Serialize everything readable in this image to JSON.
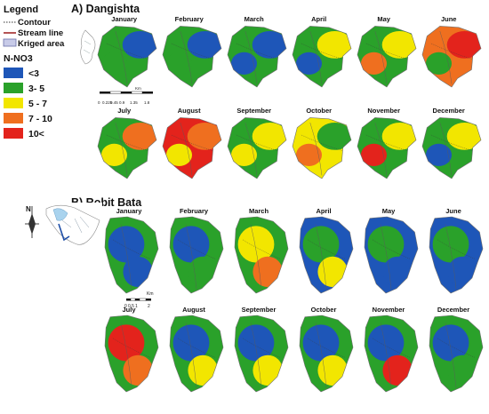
{
  "legend": {
    "title": "Legend",
    "contour_label": "Contour",
    "stream_label": "Stream line",
    "kriged_label": "Kriged area",
    "var_title": "N-NO3",
    "classes": [
      {
        "label": "<3",
        "color": "#1e56b8"
      },
      {
        "label": "3- 5",
        "color": "#2aa12a"
      },
      {
        "label": "5 - 7",
        "color": "#f2e600"
      },
      {
        "label": "7 - 10",
        "color": "#ef6f1f"
      },
      {
        "label": "10<",
        "color": "#e3231c"
      }
    ]
  },
  "panel_a": {
    "title": "A) Dangishta",
    "scale_ticks": [
      "0",
      "0.225",
      "0.45",
      "0.9",
      "1.35",
      "1.8"
    ],
    "scale_unit": "Km",
    "months": [
      {
        "name": "January",
        "base": "#2aa12a",
        "blobs": [
          {
            "c": "#1e56b8"
          },
          {
            "c": "#2aa12a"
          }
        ]
      },
      {
        "name": "February",
        "base": "#2aa12a",
        "blobs": [
          {
            "c": "#1e56b8"
          },
          {
            "c": "#2aa12a"
          }
        ]
      },
      {
        "name": "March",
        "base": "#2aa12a",
        "blobs": [
          {
            "c": "#1e56b8"
          },
          {
            "c": "#1e56b8"
          }
        ]
      },
      {
        "name": "April",
        "base": "#2aa12a",
        "blobs": [
          {
            "c": "#f2e600"
          },
          {
            "c": "#1e56b8"
          }
        ]
      },
      {
        "name": "May",
        "base": "#2aa12a",
        "blobs": [
          {
            "c": "#f2e600"
          },
          {
            "c": "#ef6f1f"
          }
        ]
      },
      {
        "name": "June",
        "base": "#ef6f1f",
        "blobs": [
          {
            "c": "#e3231c"
          },
          {
            "c": "#2aa12a"
          }
        ]
      },
      {
        "name": "July",
        "base": "#2aa12a",
        "blobs": [
          {
            "c": "#ef6f1f"
          },
          {
            "c": "#f2e600"
          }
        ]
      },
      {
        "name": "August",
        "base": "#e3231c",
        "blobs": [
          {
            "c": "#ef6f1f"
          },
          {
            "c": "#f2e600"
          }
        ]
      },
      {
        "name": "September",
        "base": "#2aa12a",
        "blobs": [
          {
            "c": "#f2e600"
          },
          {
            "c": "#f2e600"
          }
        ]
      },
      {
        "name": "October",
        "base": "#f2e600",
        "blobs": [
          {
            "c": "#2aa12a"
          },
          {
            "c": "#ef6f1f"
          }
        ]
      },
      {
        "name": "November",
        "base": "#2aa12a",
        "blobs": [
          {
            "c": "#f2e600"
          },
          {
            "c": "#e3231c"
          }
        ]
      },
      {
        "name": "December",
        "base": "#2aa12a",
        "blobs": [
          {
            "c": "#f2e600"
          },
          {
            "c": "#1e56b8"
          }
        ]
      }
    ]
  },
  "panel_b": {
    "title": "B) Robit Bata",
    "scale_ticks": [
      "0",
      "0.5",
      "1",
      "2"
    ],
    "scale_unit": "Km",
    "months": [
      {
        "name": "January",
        "base": "#2aa12a",
        "blobs": [
          {
            "c": "#1e56b8"
          },
          {
            "c": "#1e56b8"
          }
        ]
      },
      {
        "name": "February",
        "base": "#2aa12a",
        "blobs": [
          {
            "c": "#1e56b8"
          },
          {
            "c": "#2aa12a"
          }
        ]
      },
      {
        "name": "March",
        "base": "#2aa12a",
        "blobs": [
          {
            "c": "#f2e600"
          },
          {
            "c": "#ef6f1f"
          }
        ]
      },
      {
        "name": "April",
        "base": "#1e56b8",
        "blobs": [
          {
            "c": "#2aa12a"
          },
          {
            "c": "#f2e600"
          }
        ]
      },
      {
        "name": "May",
        "base": "#1e56b8",
        "blobs": [
          {
            "c": "#2aa12a"
          },
          {
            "c": "#1e56b8"
          }
        ]
      },
      {
        "name": "June",
        "base": "#1e56b8",
        "blobs": [
          {
            "c": "#2aa12a"
          },
          {
            "c": "#1e56b8"
          }
        ]
      },
      {
        "name": "July",
        "base": "#2aa12a",
        "blobs": [
          {
            "c": "#e3231c"
          },
          {
            "c": "#ef6f1f"
          }
        ]
      },
      {
        "name": "August",
        "base": "#2aa12a",
        "blobs": [
          {
            "c": "#1e56b8"
          },
          {
            "c": "#f2e600"
          }
        ]
      },
      {
        "name": "September",
        "base": "#2aa12a",
        "blobs": [
          {
            "c": "#1e56b8"
          },
          {
            "c": "#f2e600"
          }
        ]
      },
      {
        "name": "October",
        "base": "#2aa12a",
        "blobs": [
          {
            "c": "#1e56b8"
          },
          {
            "c": "#f2e600"
          }
        ]
      },
      {
        "name": "November",
        "base": "#2aa12a",
        "blobs": [
          {
            "c": "#1e56b8"
          },
          {
            "c": "#e3231c"
          }
        ]
      },
      {
        "name": "December",
        "base": "#2aa12a",
        "blobs": [
          {
            "c": "#1e56b8"
          },
          {
            "c": "#2aa12a"
          }
        ]
      }
    ]
  }
}
